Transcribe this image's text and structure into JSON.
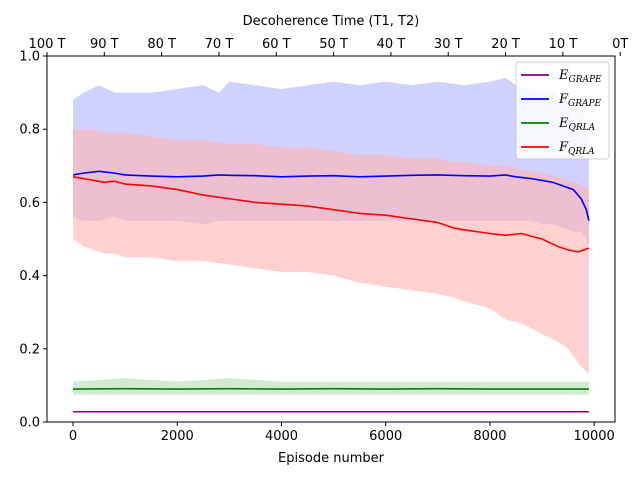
{
  "chart_data": {
    "type": "line",
    "xlabel": "Episode number",
    "ylabel": "",
    "xlim": [
      -500,
      10400
    ],
    "ylim": [
      0,
      1.0
    ],
    "x_ticks": [
      0,
      2000,
      4000,
      6000,
      8000,
      10000
    ],
    "x_tick_labels": [
      "0",
      "2000",
      "4000",
      "6000",
      "8000",
      "10000"
    ],
    "y_ticks": [
      0.0,
      0.2,
      0.4,
      0.6,
      0.8,
      1.0
    ],
    "y_tick_labels": [
      "0.0",
      "0.2",
      "0.4",
      "0.6",
      "0.8",
      "1.0"
    ],
    "top_axis": {
      "label": "Decoherence Time (T1, T2)",
      "tick_positions": [
        -500,
        600,
        1700,
        2800,
        3900,
        5000,
        6100,
        7200,
        8300,
        9400,
        10500
      ],
      "tick_labels": [
        "100 T",
        "90 T",
        "80 T",
        "70 T",
        "60 T",
        "50 T",
        "40 T",
        "30 T",
        "20 T",
        "10 T",
        "0T"
      ]
    },
    "legend_position": "top-right",
    "series": [
      {
        "name": "E_GRAPE",
        "legend_main": "E",
        "legend_sub": "GRAPE",
        "color": "#800080",
        "x": [
          0,
          9900
        ],
        "y": [
          0.028,
          0.028
        ]
      },
      {
        "name": "F_GRAPE",
        "legend_main": "F",
        "legend_sub": "GRAPE",
        "color": "#0000ff",
        "band_color": "#b3b3ff",
        "x": [
          0,
          200,
          500,
          800,
          1000,
          1500,
          2000,
          2500,
          2800,
          3000,
          3500,
          4000,
          4500,
          5000,
          5500,
          6000,
          6500,
          7000,
          7500,
          8000,
          8300,
          8500,
          8800,
          9000,
          9200,
          9400,
          9600,
          9750,
          9850,
          9900
        ],
        "y": [
          0.675,
          0.68,
          0.685,
          0.68,
          0.675,
          0.672,
          0.67,
          0.672,
          0.675,
          0.674,
          0.673,
          0.67,
          0.672,
          0.673,
          0.67,
          0.672,
          0.674,
          0.675,
          0.673,
          0.672,
          0.675,
          0.67,
          0.665,
          0.66,
          0.655,
          0.645,
          0.635,
          0.61,
          0.58,
          0.55
        ],
        "band_upper": [
          0.88,
          0.9,
          0.92,
          0.9,
          0.9,
          0.9,
          0.91,
          0.92,
          0.9,
          0.93,
          0.92,
          0.91,
          0.92,
          0.93,
          0.92,
          0.93,
          0.92,
          0.93,
          0.92,
          0.93,
          0.94,
          0.92,
          0.91,
          0.9,
          0.9,
          0.88,
          0.87,
          0.85,
          0.82,
          0.78
        ],
        "band_lower": [
          0.56,
          0.55,
          0.55,
          0.56,
          0.55,
          0.55,
          0.55,
          0.54,
          0.55,
          0.55,
          0.55,
          0.55,
          0.55,
          0.55,
          0.55,
          0.55,
          0.55,
          0.55,
          0.55,
          0.55,
          0.55,
          0.55,
          0.55,
          0.54,
          0.54,
          0.53,
          0.52,
          0.52,
          0.5,
          0.48
        ]
      },
      {
        "name": "E_QRLA",
        "legend_main": "E",
        "legend_sub": "QRLA",
        "color": "#008000",
        "band_color": "#b3dcb3",
        "x": [
          0,
          1000,
          2000,
          3000,
          4000,
          5000,
          6000,
          7000,
          8000,
          9000,
          9900
        ],
        "y": [
          0.09,
          0.091,
          0.09,
          0.091,
          0.09,
          0.091,
          0.09,
          0.091,
          0.09,
          0.09,
          0.09
        ],
        "band_upper": [
          0.11,
          0.12,
          0.11,
          0.12,
          0.11,
          0.11,
          0.11,
          0.11,
          0.11,
          0.11,
          0.11
        ],
        "band_lower": [
          0.075,
          0.075,
          0.075,
          0.075,
          0.075,
          0.075,
          0.075,
          0.075,
          0.075,
          0.075,
          0.075
        ]
      },
      {
        "name": "F_QRLA",
        "legend_main": "F",
        "legend_sub": "QRLA",
        "color": "#ff0000",
        "band_color": "#ffb3b3",
        "x": [
          0,
          200,
          400,
          600,
          800,
          1000,
          1500,
          2000,
          2500,
          3000,
          3500,
          4000,
          4500,
          5000,
          5500,
          6000,
          6500,
          7000,
          7300,
          7500,
          8000,
          8300,
          8600,
          9000,
          9300,
          9500,
          9700,
          9900
        ],
        "y": [
          0.67,
          0.665,
          0.66,
          0.655,
          0.658,
          0.65,
          0.645,
          0.635,
          0.62,
          0.61,
          0.6,
          0.595,
          0.59,
          0.58,
          0.57,
          0.565,
          0.555,
          0.545,
          0.53,
          0.525,
          0.515,
          0.51,
          0.515,
          0.5,
          0.48,
          0.47,
          0.465,
          0.475
        ],
        "band_upper": [
          0.8,
          0.8,
          0.8,
          0.79,
          0.79,
          0.79,
          0.78,
          0.77,
          0.77,
          0.76,
          0.76,
          0.75,
          0.75,
          0.74,
          0.73,
          0.73,
          0.72,
          0.72,
          0.71,
          0.71,
          0.7,
          0.7,
          0.69,
          0.68,
          0.67,
          0.66,
          0.65,
          0.64
        ],
        "band_lower": [
          0.5,
          0.48,
          0.47,
          0.46,
          0.46,
          0.45,
          0.45,
          0.44,
          0.44,
          0.43,
          0.42,
          0.41,
          0.41,
          0.4,
          0.38,
          0.37,
          0.36,
          0.35,
          0.34,
          0.33,
          0.31,
          0.28,
          0.27,
          0.24,
          0.22,
          0.2,
          0.16,
          0.13
        ]
      }
    ]
  }
}
